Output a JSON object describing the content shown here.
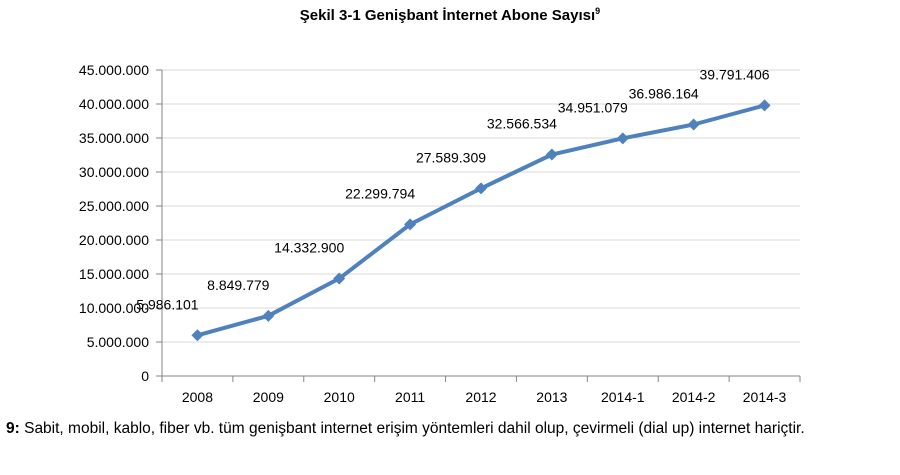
{
  "chart_data": {
    "type": "line",
    "title": "Şekil 3-1 Genişbant İnternet Abone Sayısı",
    "title_footnote_mark": "9",
    "xlabel": "",
    "ylabel": "",
    "categories": [
      "2008",
      "2009",
      "2010",
      "2011",
      "2012",
      "2013",
      "2014-1",
      "2014-2",
      "2014-3"
    ],
    "series": [
      {
        "values": [
          5986101,
          8849779,
          14332900,
          22299794,
          27589309,
          32566534,
          34951079,
          36986164,
          39791406
        ],
        "labels": [
          "5.986.101",
          "8.849.779",
          "14.332.900",
          "22.299.794",
          "27.589.309",
          "32.566.534",
          "34.951.079",
          "36.986.164",
          "39.791.406"
        ],
        "color": "#4f81bd"
      }
    ],
    "ylim": [
      0,
      45000000
    ],
    "ytick_labels": [
      "0",
      "5.000.000",
      "10.000.000",
      "15.000.000",
      "20.000.000",
      "25.000.000",
      "30.000.000",
      "35.000.000",
      "40.000.000",
      "45.000.000"
    ],
    "grid": true,
    "legend": "none",
    "marker": "diamond"
  },
  "footnote": {
    "mark": "9:",
    "text": " Sabit, mobil, kablo, fiber vb. tüm genişbant internet erişim yöntemleri dahil olup, çevirmeli (dial up) internet hariçtir."
  }
}
